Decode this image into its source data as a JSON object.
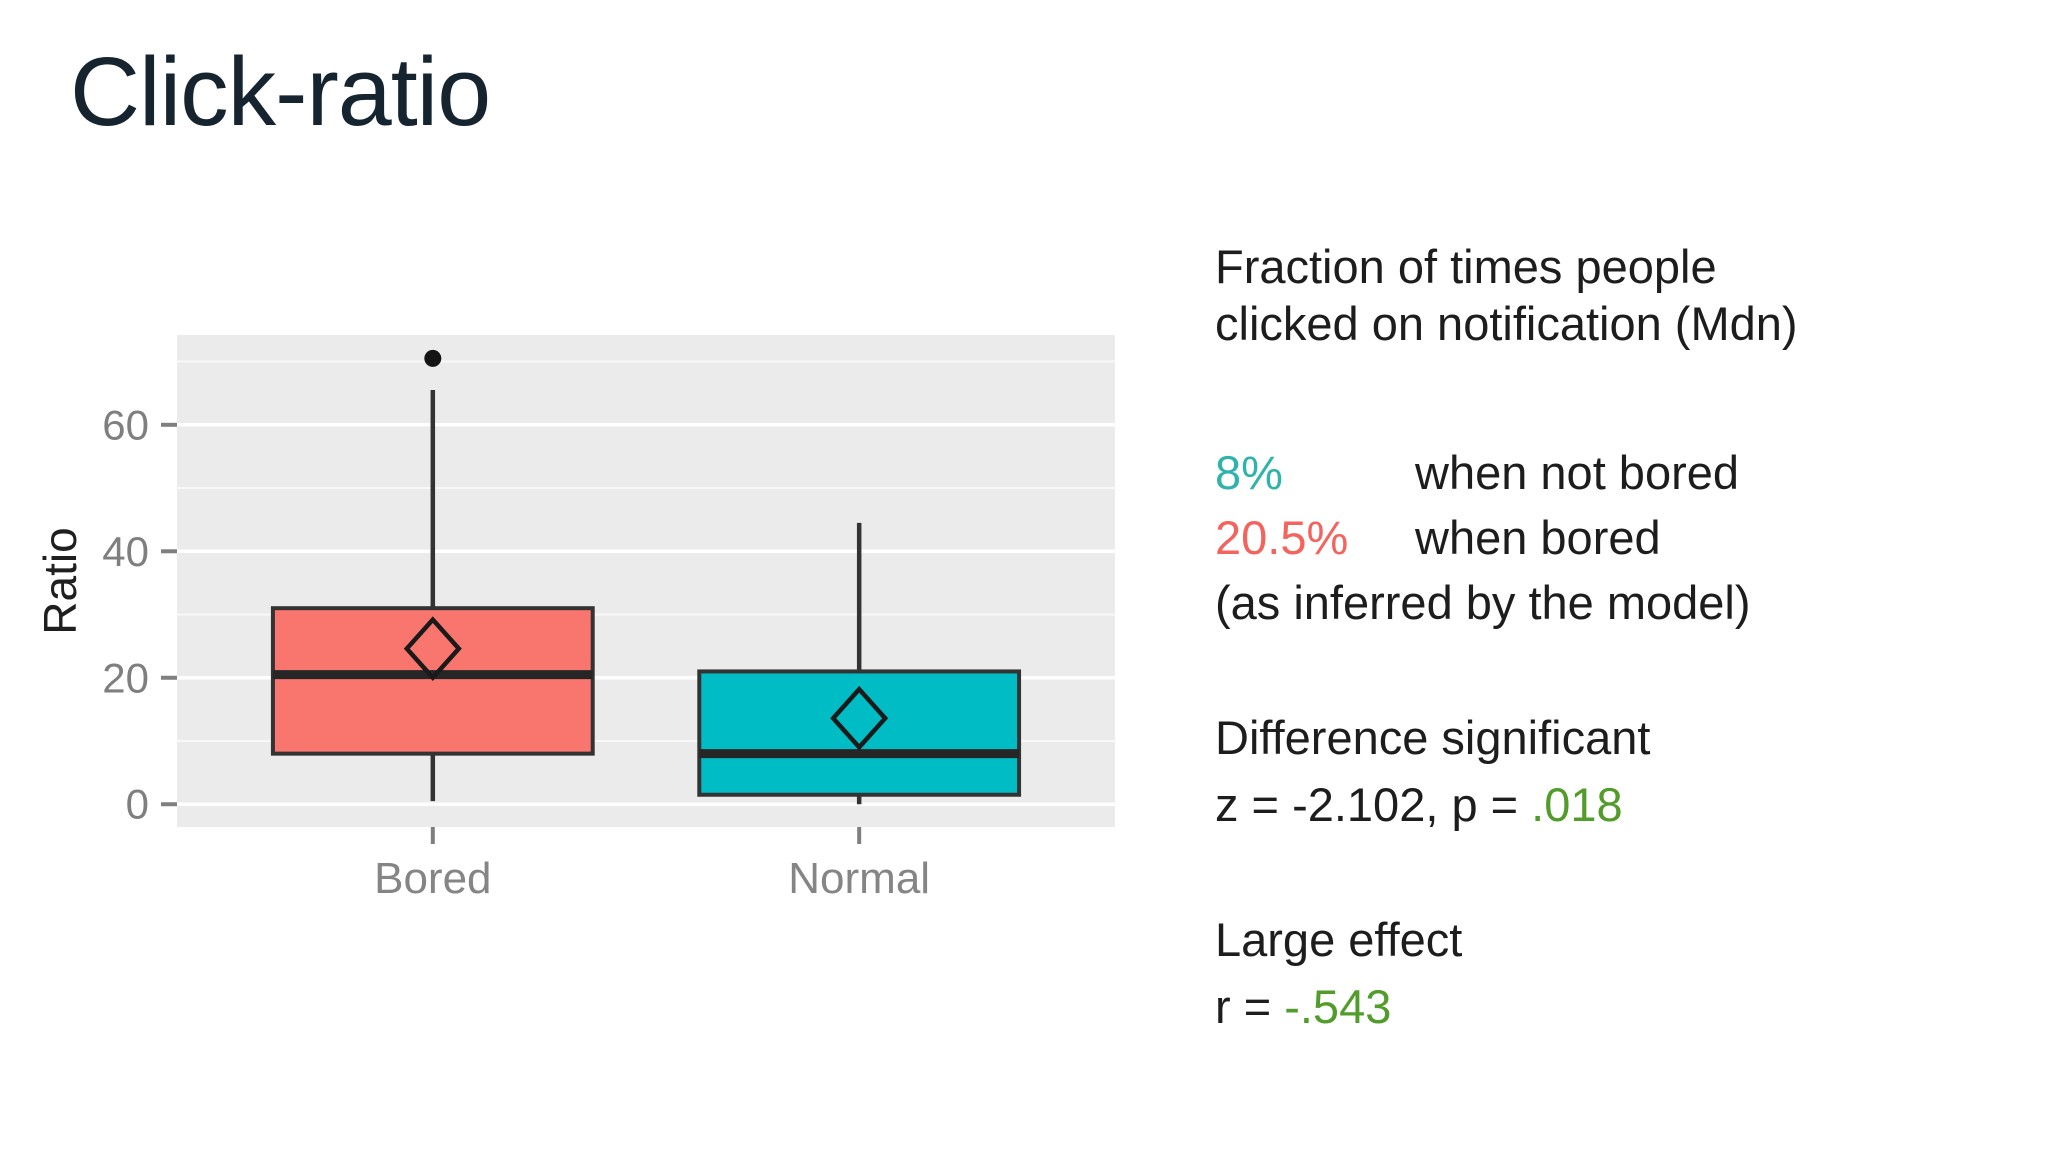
{
  "slide": {
    "title": "Click-ratio"
  },
  "annotation": {
    "intro_line1": "Fraction of times people",
    "intro_line2": "clicked on notification (Mdn)",
    "rows": [
      {
        "value": "8%",
        "value_color": "#2fb3ab",
        "label": "when not bored"
      },
      {
        "value": "20.5%",
        "value_color": "#f4635e",
        "label": "when bored"
      }
    ],
    "model_note": "(as inferred by the model)",
    "significance_title": "Difference significant",
    "z_prefix": "z = -2.102, p = ",
    "p_value": ".018",
    "effect_title": "Large effect",
    "r_prefix": "r = ",
    "r_value": "-.543",
    "highlight_color": "#529c2b"
  },
  "chart_data": {
    "type": "boxplot",
    "title": "",
    "xlabel": "",
    "ylabel": "Ratio",
    "categories": [
      "Bored",
      "Normal"
    ],
    "yticks": [
      0,
      20,
      40,
      60
    ],
    "minor_gridlines": [
      10,
      30,
      50,
      70
    ],
    "ylim": [
      -3.6,
      74.2
    ],
    "grid": true,
    "legend": "none",
    "series": [
      {
        "name": "Bored",
        "color": "#f8766d",
        "whisker_low": 0.5,
        "q1": 8,
        "median": 20.5,
        "q3": 31,
        "whisker_high": 65.5,
        "mean": 24.6,
        "outliers": [
          70.5
        ]
      },
      {
        "name": "Normal",
        "color": "#00bcc4",
        "whisker_low": 0,
        "q1": 1.5,
        "median": 8,
        "q3": 21,
        "whisker_high": 44.5,
        "mean": 13.6,
        "outliers": []
      }
    ],
    "style": {
      "panel_bg": "#ebebeb",
      "gridline_color": "#ffffff",
      "box_border_color": "#333333",
      "median_color": "#262626",
      "whisker_color": "#333333",
      "mean_marker": "open-diamond",
      "mean_marker_color": "#1a1a1a",
      "outlier_color": "#141414",
      "tick_color": "#7f7f7f",
      "tick_label_color": "#7f7f7f",
      "x_label_color": "#858585",
      "axis_title_color": "#1f1f1f"
    }
  }
}
